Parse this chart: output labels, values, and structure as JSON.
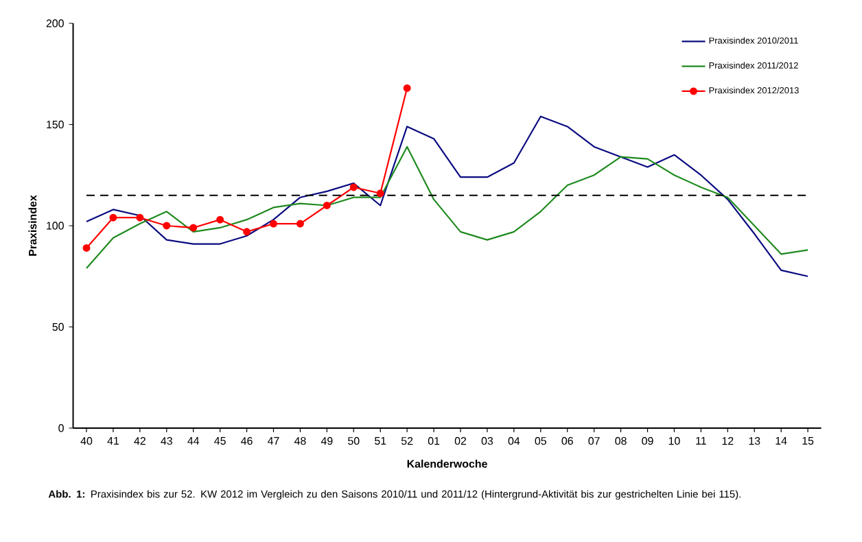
{
  "chart_data": {
    "type": "line",
    "xlabel": "Kalenderwoche",
    "ylabel": "Praxisindex",
    "categories": [
      "40",
      "41",
      "42",
      "43",
      "44",
      "45",
      "46",
      "47",
      "48",
      "49",
      "50",
      "51",
      "52",
      "01",
      "02",
      "03",
      "04",
      "05",
      "06",
      "07",
      "08",
      "09",
      "10",
      "11",
      "12",
      "13",
      "14",
      "15"
    ],
    "series": [
      {
        "name": "Praxisindex 2010/2011",
        "color": "#0a0a80",
        "marker": "none",
        "values": [
          102,
          108,
          105,
          93,
          91,
          91,
          95,
          103,
          114,
          117,
          121,
          110,
          149,
          143,
          124,
          124,
          131,
          154,
          149,
          139,
          134,
          129,
          135,
          125,
          113,
          96,
          78,
          75
        ]
      },
      {
        "name": "Praxisindex 2011/2012",
        "color": "#1f8a1f",
        "marker": "none",
        "values": [
          79,
          94,
          101,
          107,
          97,
          99,
          103,
          109,
          111,
          110,
          114,
          114,
          139,
          113,
          97,
          93,
          97,
          107,
          120,
          125,
          134,
          133,
          125,
          119,
          114,
          100,
          86,
          88
        ]
      },
      {
        "name": "Praxisindex 2012/2013",
        "color": "#ff0000",
        "marker": "circle",
        "values": [
          89,
          104,
          104,
          100,
          99,
          103,
          97,
          101,
          101,
          110,
          119,
          116,
          168,
          null,
          null,
          null,
          null,
          null,
          null,
          null,
          null,
          null,
          null,
          null,
          null,
          null,
          null,
          null
        ]
      }
    ],
    "ylim": [
      0,
      200
    ],
    "yticks": [
      0,
      50,
      100,
      150,
      200
    ],
    "ref_lines": [
      {
        "axis": "y",
        "value": 115,
        "color": "#000000",
        "line_style": "dashed"
      }
    ],
    "legend": "top right",
    "grid": false,
    "annotations": [
      "**Abb. 1:** Praxisindex bis zur 52. KW 2012 im Vergleich zu den Saisons 2010/11 und 2011/12 (Hintergrund-Aktivität bis zur gestrichelten Linie bei 115)."
    ]
  }
}
